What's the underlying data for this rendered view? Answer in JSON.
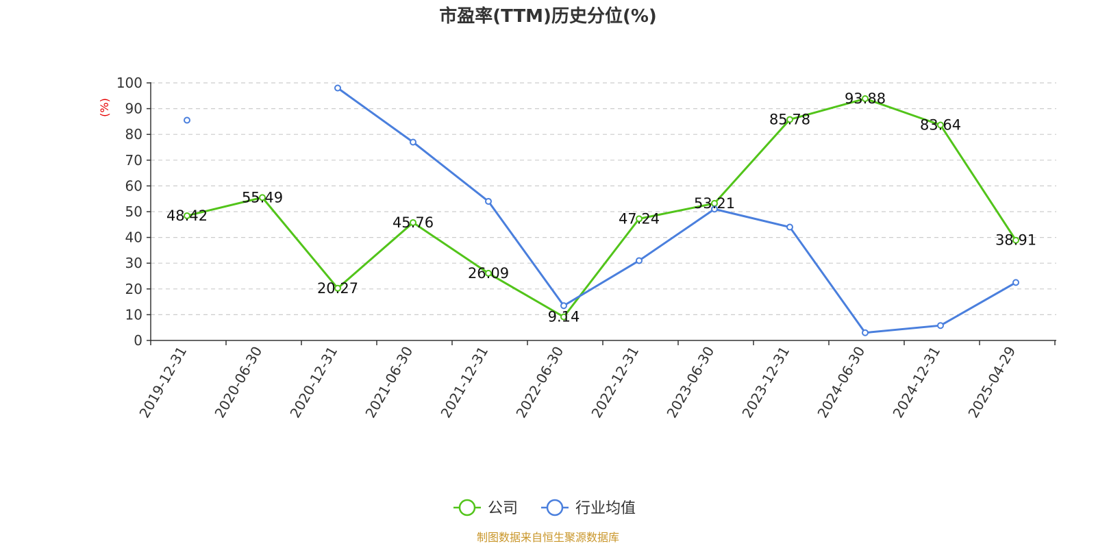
{
  "chart_data": {
    "type": "line",
    "title": "市盈率(TTM)历史分位(%)",
    "ylabel": "(%)",
    "xlabel": "",
    "ylim": [
      0,
      100
    ],
    "yticks": [
      0,
      10,
      20,
      30,
      40,
      50,
      60,
      70,
      80,
      90,
      100
    ],
    "categories": [
      "2019-12-31",
      "2020-06-30",
      "2020-12-31",
      "2021-06-30",
      "2021-12-31",
      "2022-06-30",
      "2022-12-31",
      "2023-06-30",
      "2023-12-31",
      "2024-06-30",
      "2024-12-31",
      "2025-04-29"
    ],
    "grid": "horizontal-dashed",
    "legend_position": "bottom-center",
    "series": [
      {
        "name": "公司",
        "color": "#52c41a",
        "show_labels": true,
        "values": [
          48.42,
          55.49,
          20.27,
          45.76,
          26.09,
          9.14,
          47.24,
          53.21,
          85.78,
          93.88,
          83.64,
          38.91
        ],
        "labels": [
          "48.42",
          "55.49",
          "20.27",
          "45.76",
          "26.09",
          "9.14",
          "47.24",
          "53.21",
          "85.78",
          "93.88",
          "83.64",
          "38.91"
        ]
      },
      {
        "name": "行业均值",
        "color": "#4a7fdd",
        "show_labels": false,
        "values": [
          85.5,
          null,
          98,
          77,
          54,
          13.5,
          31,
          51,
          44,
          3,
          5.8,
          22.5
        ]
      }
    ]
  },
  "source": {
    "text": "制图数据来自恒生聚源数据库",
    "color": "#c9962a"
  },
  "unit_color": "#e60000"
}
